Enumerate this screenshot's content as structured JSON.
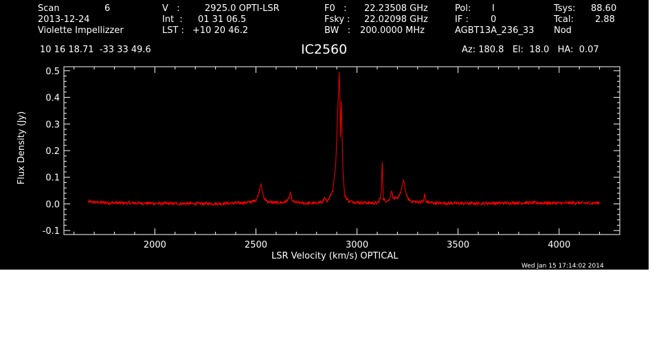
{
  "header": {
    "scan_label": "Scan",
    "scan_number": "6",
    "date": "2013-12-24",
    "observer": "Violette Impellizzer",
    "v_label": "V   :",
    "v_value": "2925.0 OPTI-LSR",
    "int_label": "Int  :",
    "int_value": "01 31 06.5",
    "lst_label": "LST :",
    "lst_value": "+10 20 46.2",
    "f0_label": "F0   :",
    "f0_value": "22.23508 GHz",
    "fsky_label": "Fsky :",
    "fsky_value": "22.02098 GHz",
    "bw_label": "BW   :",
    "bw_value": "200.0000 MHz",
    "pol_label": "Pol:",
    "pol_value": "I",
    "if_label": "IF :",
    "if_value": "0",
    "project": "AGBT13A_236_33",
    "tsys_label": "Tsys:",
    "tsys_value": "88.60",
    "tcal_label": "Tcal:",
    "tcal_value": "2.88",
    "proc": "Nod",
    "coords": "10 16 18.71  -33 33 49.6",
    "source": "IC2560",
    "az_el_ha": "Az: 180.8   El:  18.0   HA:  0.07"
  },
  "footer": {
    "timestamp": "Wed Jan 15 17:14:02 2014"
  },
  "colors": {
    "background": "#000000",
    "axes": "#ffffff",
    "spectrum": "#ff0000"
  },
  "chart_data": {
    "type": "line",
    "xlabel": "LSR Velocity (km/s) OPTICAL",
    "ylabel": "Flux Density (Jy)",
    "xlim": [
      1550,
      4300
    ],
    "ylim": [
      -0.115,
      0.515
    ],
    "x_ticks": [
      2000,
      2500,
      3000,
      3500,
      4000
    ],
    "y_ticks": [
      -0.1,
      0.0,
      0.1,
      0.2,
      0.3,
      0.4,
      0.5
    ],
    "y_tick_labels": [
      "-0.1",
      "0.0",
      "0.1",
      "0.2",
      "0.3",
      "0.4",
      "0.5"
    ],
    "grid": false,
    "series": [
      {
        "x": [
          1670,
          1700,
          1800,
          1900,
          2000,
          2100,
          2200,
          2300,
          2400,
          2450,
          2480,
          2500,
          2510,
          2520,
          2525,
          2530,
          2540,
          2560,
          2600,
          2640,
          2660,
          2670,
          2680,
          2700,
          2750,
          2800,
          2830,
          2840,
          2850,
          2860,
          2880,
          2895,
          2905,
          2912,
          2915,
          2918,
          2922,
          2925,
          2928,
          2932,
          2940,
          2960,
          3000,
          3050,
          3100,
          3110,
          3120,
          3125,
          3130,
          3140,
          3160,
          3170,
          3180,
          3200,
          3220,
          3230,
          3235,
          3240,
          3250,
          3270,
          3300,
          3330,
          3335,
          3340,
          3360,
          3400,
          3500,
          3600,
          3700,
          3800,
          3900,
          4000,
          4100,
          4150,
          4200
        ],
        "y": [
          0.008,
          0.006,
          0.004,
          0.003,
          0.002,
          0.001,
          0.001,
          0.001,
          0.003,
          0.005,
          0.008,
          0.015,
          0.03,
          0.06,
          0.08,
          0.05,
          0.02,
          0.008,
          0.004,
          0.006,
          0.015,
          0.04,
          0.01,
          0.005,
          0.002,
          0.003,
          0.008,
          0.02,
          0.01,
          0.02,
          0.05,
          0.15,
          0.35,
          0.49,
          0.42,
          0.25,
          0.38,
          0.3,
          0.2,
          0.1,
          0.03,
          0.01,
          0.006,
          0.004,
          0.003,
          0.01,
          0.04,
          0.16,
          0.02,
          0.01,
          0.015,
          0.05,
          0.02,
          0.02,
          0.05,
          0.09,
          0.07,
          0.05,
          0.02,
          0.01,
          0.006,
          0.01,
          0.04,
          0.01,
          0.005,
          0.003,
          0.002,
          0.002,
          0.003,
          0.004,
          0.004,
          0.003,
          0.004,
          0.003,
          0.004
        ]
      }
    ]
  }
}
